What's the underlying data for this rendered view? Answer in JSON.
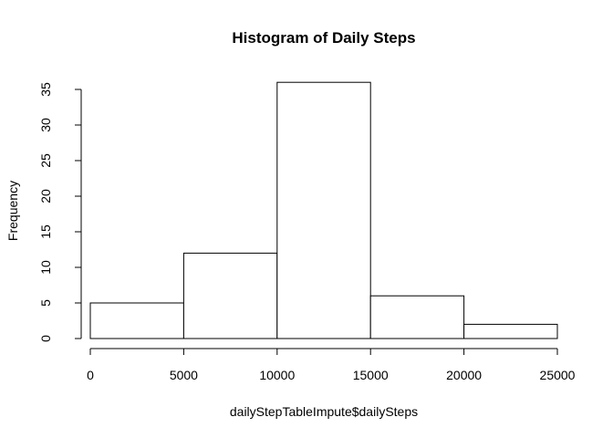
{
  "chart_data": {
    "type": "bar",
    "title": "Histogram of Daily Steps",
    "xlabel": "dailyStepTableImpute$dailySteps",
    "ylabel": "Frequency",
    "bins": [
      {
        "start": 0,
        "end": 5000,
        "count": 5
      },
      {
        "start": 5000,
        "end": 10000,
        "count": 12
      },
      {
        "start": 10000,
        "end": 15000,
        "count": 36
      },
      {
        "start": 15000,
        "end": 20000,
        "count": 6
      },
      {
        "start": 20000,
        "end": 25000,
        "count": 2
      }
    ],
    "x_ticks": [
      "0",
      "5000",
      "10000",
      "15000",
      "20000",
      "25000"
    ],
    "y_ticks": [
      "0",
      "5",
      "10",
      "15",
      "20",
      "25",
      "30",
      "35"
    ],
    "xlim": [
      0,
      25000
    ],
    "ylim": [
      0,
      36
    ],
    "grid": false,
    "legend": "none",
    "bar_fill": "#ffffff",
    "bar_stroke": "#000000"
  }
}
